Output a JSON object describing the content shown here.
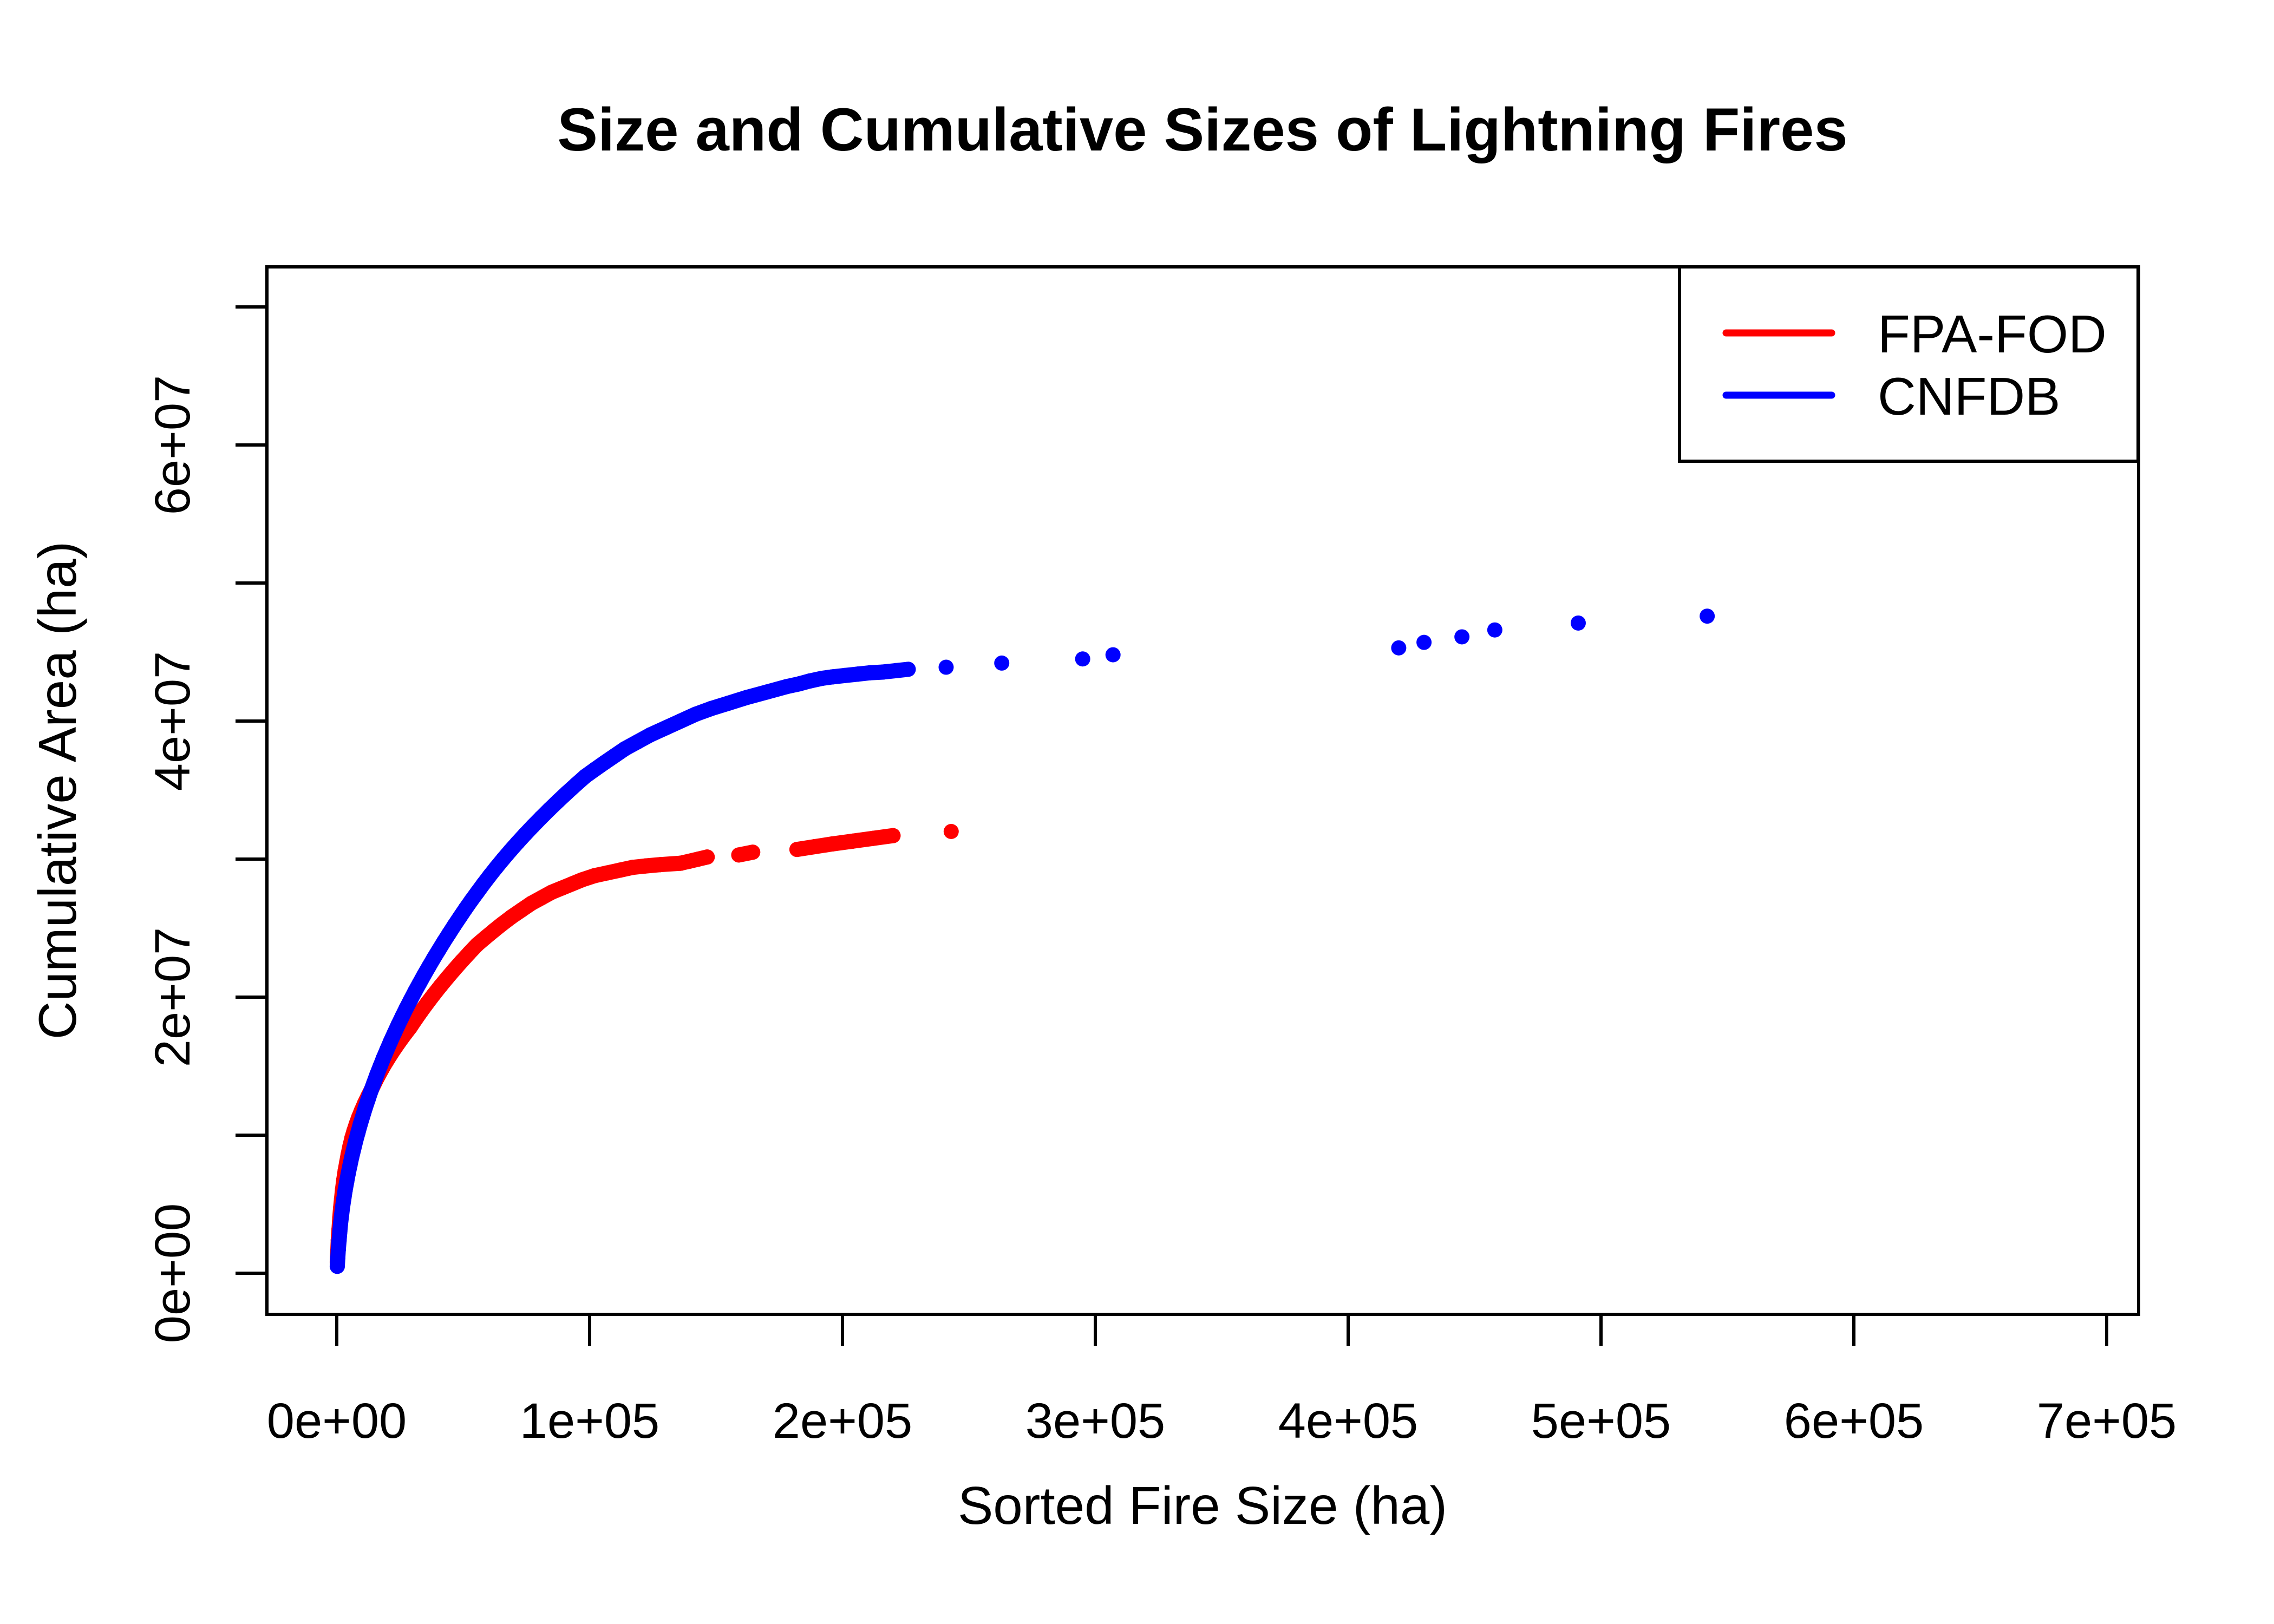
{
  "title": "Size and Cumulative Sizes of Lightning Fires",
  "x_axis": {
    "label": "Sorted Fire Size (ha)",
    "tick_values": [
      0,
      100000,
      200000,
      300000,
      400000,
      500000,
      600000,
      700000
    ],
    "tick_labels": [
      "0e+00",
      "1e+05",
      "2e+05",
      "3e+05",
      "4e+05",
      "5e+05",
      "6e+05",
      "7e+05"
    ]
  },
  "y_axis": {
    "label": "Cumulative Area (ha)",
    "tick_values": [
      0,
      10000000,
      20000000,
      30000000,
      40000000,
      50000000,
      60000000,
      70000000
    ],
    "tick_labels": [
      "0e+00",
      "",
      "2e+07",
      "",
      "4e+07",
      "",
      "6e+07",
      ""
    ]
  },
  "legend": {
    "position": "topright",
    "items": [
      {
        "label": "FPA-FOD",
        "color": "#FF0000"
      },
      {
        "label": "CNFDB",
        "color": "#0000FF"
      }
    ]
  },
  "colors": {
    "foreground": "#000000",
    "background": "#FFFFFF",
    "fpa_fod": "#FF0000",
    "cnfdb": "#0000FF"
  },
  "chart_data": {
    "type": "scatter",
    "title": "Size and Cumulative Sizes of Lightning Fires",
    "xlabel": "Sorted Fire Size (ha)",
    "ylabel": "Cumulative Area (ha)",
    "xlim": [
      0,
      700000
    ],
    "ylim": [
      0,
      70000000
    ],
    "grid": false,
    "legend_position": "topright",
    "point_style": "filled-circle",
    "series": [
      {
        "name": "FPA-FOD",
        "color": "#FF0000",
        "points": [
          [
            200,
            800000
          ],
          [
            400,
            1600000
          ],
          [
            600,
            2400000
          ],
          [
            900,
            3200000
          ],
          [
            1200,
            4000000
          ],
          [
            1500,
            4700000
          ],
          [
            1900,
            5400000
          ],
          [
            2300,
            6100000
          ],
          [
            2800,
            6800000
          ],
          [
            3300,
            7400000
          ],
          [
            3900,
            8000000
          ],
          [
            4500,
            8600000
          ],
          [
            5200,
            9200000
          ],
          [
            6000,
            9800000
          ],
          [
            6800,
            10300000
          ],
          [
            7700,
            10800000
          ],
          [
            8700,
            11300000
          ],
          [
            9800,
            11800000
          ],
          [
            11000,
            12300000
          ],
          [
            12300,
            12800000
          ],
          [
            13700,
            13300000
          ],
          [
            15000,
            13800000
          ],
          [
            16400,
            14300000
          ],
          [
            17900,
            14800000
          ],
          [
            19500,
            15300000
          ],
          [
            21200,
            15800000
          ],
          [
            23000,
            16300000
          ],
          [
            24900,
            16800000
          ],
          [
            26900,
            17300000
          ],
          [
            29000,
            17800000
          ],
          [
            31200,
            18400000
          ],
          [
            33500,
            19000000
          ],
          [
            35900,
            19600000
          ],
          [
            38400,
            20200000
          ],
          [
            41000,
            20800000
          ],
          [
            43700,
            21400000
          ],
          [
            46500,
            22000000
          ],
          [
            49400,
            22600000
          ],
          [
            52400,
            23200000
          ],
          [
            55500,
            23800000
          ],
          [
            58700,
            24300000
          ],
          [
            62000,
            24800000
          ],
          [
            65400,
            25300000
          ],
          [
            69000,
            25800000
          ],
          [
            73000,
            26300000
          ],
          [
            77000,
            26800000
          ],
          [
            81000,
            27200000
          ],
          [
            85000,
            27600000
          ],
          [
            89000,
            27900000
          ],
          [
            93000,
            28200000
          ],
          [
            97000,
            28500000
          ],
          [
            102000,
            28800000
          ],
          [
            107000,
            29000000
          ],
          [
            112000,
            29200000
          ],
          [
            117000,
            29400000
          ],
          [
            122000,
            29500000
          ],
          [
            128000,
            29600000
          ],
          [
            136000,
            29700000
          ],
          [
            139500,
            29850000
          ],
          [
            143000,
            30000000
          ],
          [
            146500,
            30150000
          ],
          [
            159000,
            30300000
          ],
          [
            164500,
            30500000
          ],
          [
            182000,
            30700000
          ],
          [
            189000,
            30900000
          ],
          [
            196000,
            31100000
          ],
          [
            204000,
            31300000
          ],
          [
            212000,
            31500000
          ],
          [
            220000,
            31700000
          ],
          [
            243000,
            32000000
          ]
        ]
      },
      {
        "name": "CNFDB",
        "color": "#0000FF",
        "points": [
          [
            200,
            500000
          ],
          [
            400,
            1100000
          ],
          [
            600,
            1700000
          ],
          [
            900,
            2350000
          ],
          [
            1200,
            3000000
          ],
          [
            1500,
            3600000
          ],
          [
            1900,
            4200000
          ],
          [
            2300,
            4800000
          ],
          [
            2800,
            5400000
          ],
          [
            3300,
            6000000
          ],
          [
            3900,
            6600000
          ],
          [
            4500,
            7200000
          ],
          [
            5200,
            7800000
          ],
          [
            5900,
            8400000
          ],
          [
            6700,
            9000000
          ],
          [
            7500,
            9600000
          ],
          [
            8400,
            10200000
          ],
          [
            9300,
            10800000
          ],
          [
            10300,
            11400000
          ],
          [
            11300,
            12000000
          ],
          [
            12400,
            12600000
          ],
          [
            13500,
            13200000
          ],
          [
            14700,
            13800000
          ],
          [
            15900,
            14400000
          ],
          [
            17200,
            15000000
          ],
          [
            18500,
            15600000
          ],
          [
            19900,
            16200000
          ],
          [
            21300,
            16800000
          ],
          [
            22800,
            17400000
          ],
          [
            24300,
            18000000
          ],
          [
            25900,
            18600000
          ],
          [
            27500,
            19200000
          ],
          [
            29200,
            19800000
          ],
          [
            30900,
            20400000
          ],
          [
            32700,
            21000000
          ],
          [
            34500,
            21600000
          ],
          [
            36400,
            22200000
          ],
          [
            38300,
            22800000
          ],
          [
            40300,
            23400000
          ],
          [
            42300,
            24000000
          ],
          [
            44400,
            24600000
          ],
          [
            46500,
            25200000
          ],
          [
            48700,
            25800000
          ],
          [
            50900,
            26400000
          ],
          [
            53200,
            27000000
          ],
          [
            55600,
            27600000
          ],
          [
            58000,
            28200000
          ],
          [
            60500,
            28800000
          ],
          [
            63100,
            29400000
          ],
          [
            65800,
            30000000
          ],
          [
            68600,
            30600000
          ],
          [
            71500,
            31200000
          ],
          [
            74500,
            31800000
          ],
          [
            77600,
            32400000
          ],
          [
            80800,
            33000000
          ],
          [
            84100,
            33600000
          ],
          [
            87500,
            34200000
          ],
          [
            91000,
            34800000
          ],
          [
            94600,
            35400000
          ],
          [
            98300,
            36000000
          ],
          [
            102100,
            36500000
          ],
          [
            106000,
            37000000
          ],
          [
            110000,
            37500000
          ],
          [
            114000,
            38000000
          ],
          [
            119000,
            38500000
          ],
          [
            124000,
            39000000
          ],
          [
            130000,
            39500000
          ],
          [
            136000,
            40000000
          ],
          [
            142000,
            40500000
          ],
          [
            148000,
            40900000
          ],
          [
            155000,
            41300000
          ],
          [
            162000,
            41700000
          ],
          [
            170000,
            42100000
          ],
          [
            178000,
            42500000
          ],
          [
            183000,
            42700000
          ],
          [
            187000,
            42900000
          ],
          [
            192000,
            43100000
          ],
          [
            196000,
            43200000
          ],
          [
            201000,
            43300000
          ],
          [
            206000,
            43400000
          ],
          [
            211000,
            43500000
          ],
          [
            216000,
            43550000
          ],
          [
            221000,
            43650000
          ],
          [
            226000,
            43750000
          ],
          [
            241000,
            43900000
          ],
          [
            263000,
            44200000
          ],
          [
            295000,
            44500000
          ],
          [
            307000,
            44800000
          ],
          [
            420000,
            45300000
          ],
          [
            430000,
            45700000
          ],
          [
            445000,
            46100000
          ],
          [
            458000,
            46600000
          ],
          [
            491000,
            47100000
          ],
          [
            542000,
            47600000
          ]
        ]
      }
    ]
  }
}
